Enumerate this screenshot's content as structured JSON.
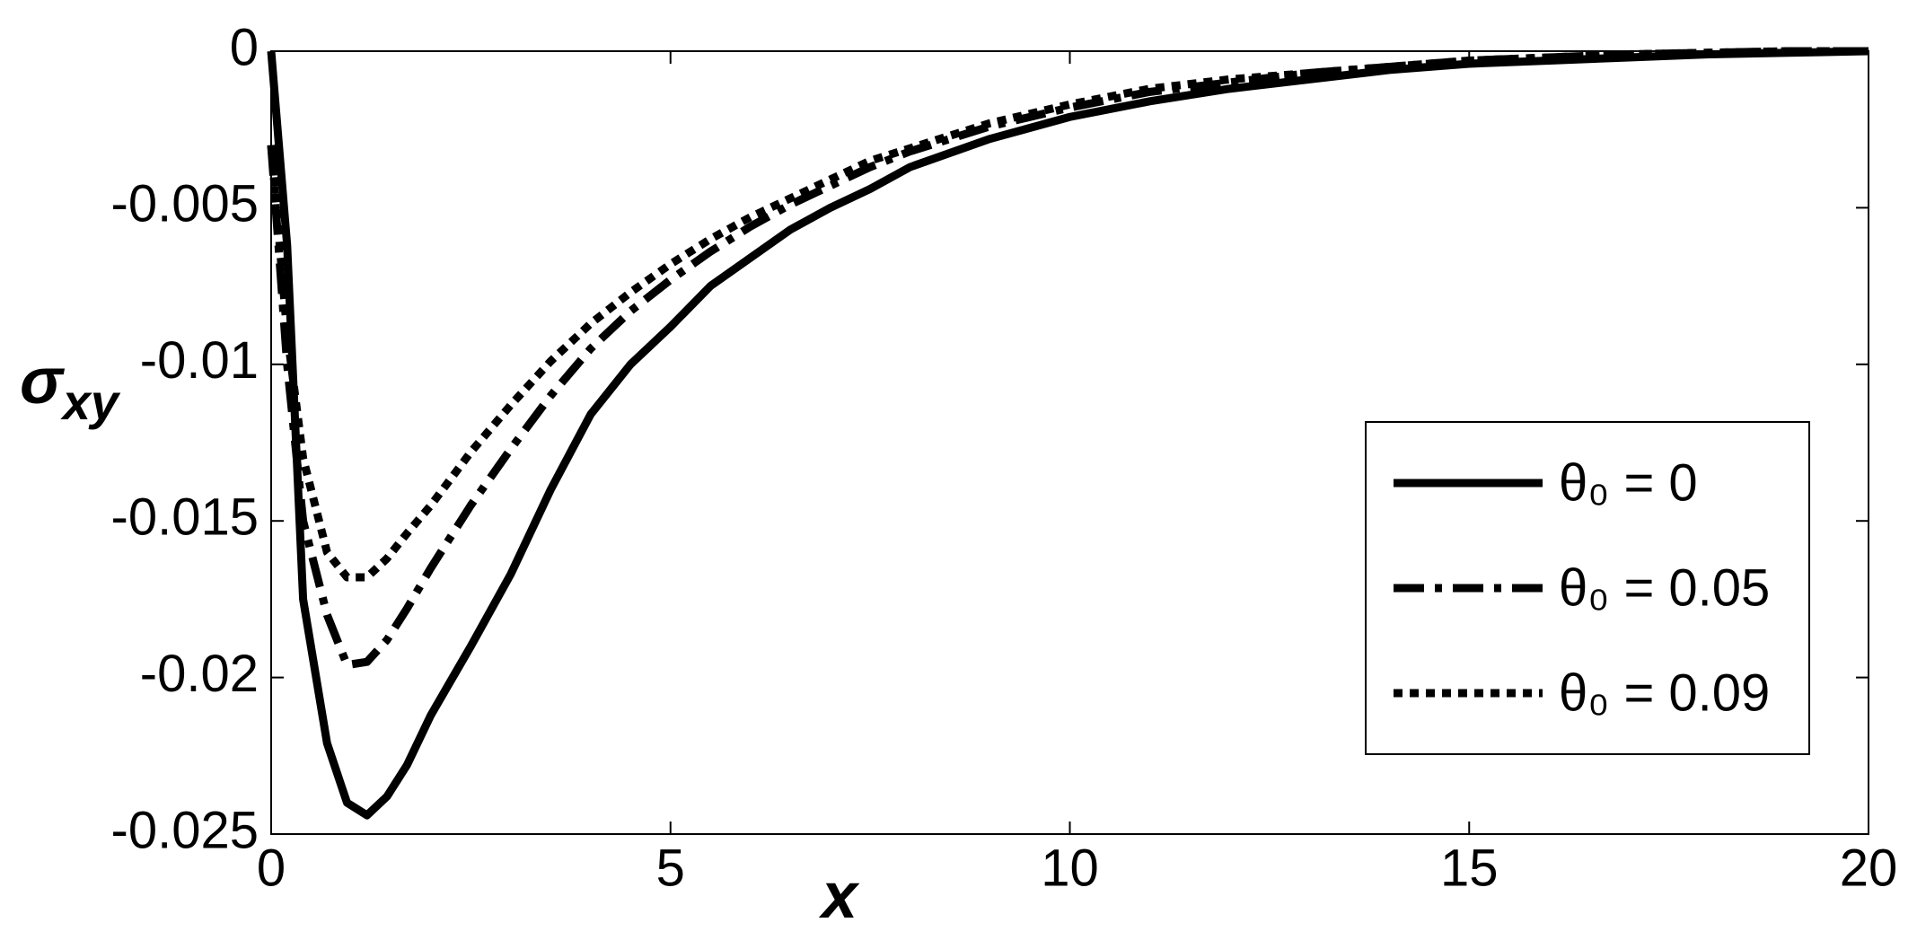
{
  "chart_data": {
    "type": "line",
    "x_label": "x",
    "y_label": {
      "symbol": "σ",
      "subscript": "xy"
    },
    "x": [
      0,
      0.2,
      0.4,
      0.7,
      0.95,
      1.2,
      1.45,
      1.7,
      2,
      2.5,
      3,
      3.5,
      4,
      4.5,
      5,
      5.5,
      6,
      6.5,
      7,
      7.5,
      8,
      9,
      10,
      11,
      12,
      13,
      14,
      15,
      16,
      17,
      18,
      19,
      20
    ],
    "series": [
      {
        "name": "θ₀ = 0",
        "color": "#000000",
        "style": "solid",
        "values": [
          0,
          -0.0062,
          -0.0175,
          -0.0221,
          -0.024,
          -0.0244,
          -0.0238,
          -0.0228,
          -0.0212,
          -0.019,
          -0.0167,
          -0.014,
          -0.0116,
          -0.01,
          -0.0088,
          -0.0075,
          -0.0066,
          -0.0057,
          -0.005,
          -0.0044,
          -0.0037,
          -0.0028,
          -0.0021,
          -0.0016,
          -0.0012,
          -0.0009,
          -0.0006,
          -0.0004,
          -0.0003,
          -0.0002,
          -0.0001,
          -5e-05,
          0
        ]
      },
      {
        "name": "θ₀ = 0.05",
        "color": "#000000",
        "style": "dashdot",
        "values": [
          -0.003,
          -0.01,
          -0.015,
          -0.018,
          -0.0196,
          -0.0195,
          -0.0188,
          -0.0178,
          -0.0165,
          -0.0145,
          -0.0127,
          -0.011,
          -0.0095,
          -0.0083,
          -0.0073,
          -0.0064,
          -0.0056,
          -0.0049,
          -0.0043,
          -0.0037,
          -0.0032,
          -0.0024,
          -0.0018,
          -0.0013,
          -0.001,
          -0.0007,
          -0.0005,
          -0.0003,
          -0.0002,
          -0.0001,
          -5e-05,
          0,
          0
        ]
      },
      {
        "name": "θ₀ = 0.09",
        "color": "#000000",
        "style": "dotted",
        "values": [
          -0.003,
          -0.009,
          -0.013,
          -0.016,
          -0.0168,
          -0.0168,
          -0.0162,
          -0.0154,
          -0.0145,
          -0.0128,
          -0.0113,
          -0.0099,
          -0.0087,
          -0.0077,
          -0.0068,
          -0.006,
          -0.0053,
          -0.0047,
          -0.0041,
          -0.0035,
          -0.0031,
          -0.0023,
          -0.0017,
          -0.0012,
          -0.0009,
          -0.0007,
          -0.0005,
          -0.0003,
          -0.0002,
          -0.0001,
          -5e-05,
          0,
          0
        ]
      }
    ],
    "xlim": [
      0,
      20
    ],
    "xticks": [
      0,
      5,
      10,
      15,
      20
    ],
    "ylim": [
      -0.025,
      0
    ],
    "yticks": [
      0,
      -0.005,
      -0.01,
      -0.015,
      -0.02,
      -0.025
    ],
    "grid": false,
    "legend": "right"
  }
}
